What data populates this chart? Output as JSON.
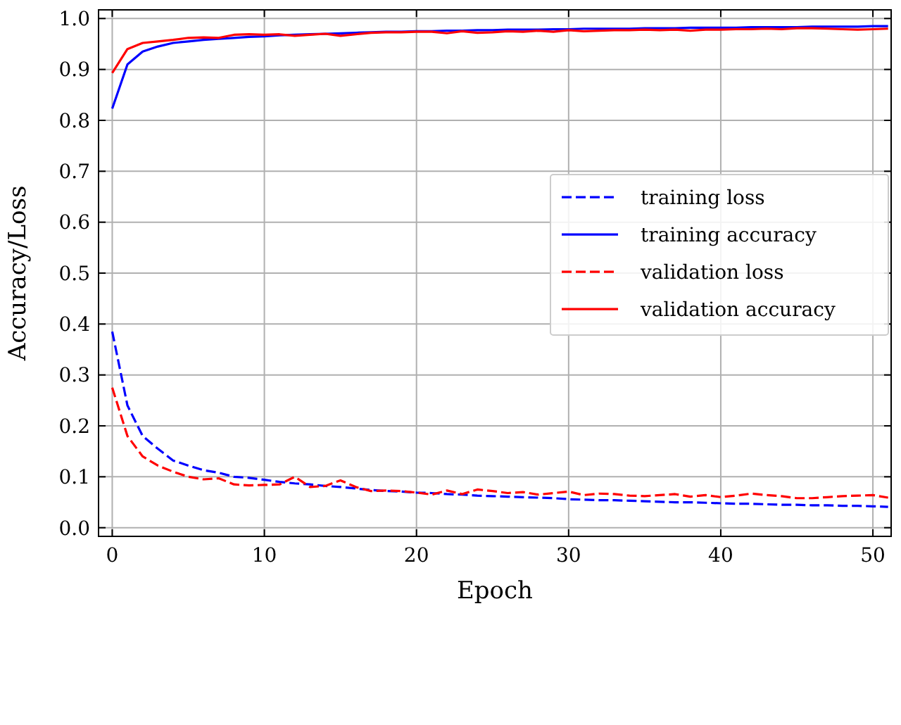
{
  "chart_data": {
    "type": "line",
    "xlabel": "Epoch",
    "ylabel": "Accuracy/Loss",
    "x": [
      0,
      1,
      2,
      3,
      4,
      5,
      6,
      7,
      8,
      9,
      10,
      11,
      12,
      13,
      14,
      15,
      16,
      17,
      18,
      19,
      20,
      21,
      22,
      23,
      24,
      25,
      26,
      27,
      28,
      29,
      30,
      31,
      32,
      33,
      34,
      35,
      36,
      37,
      38,
      39,
      40,
      41,
      42,
      43,
      44,
      45,
      46,
      47,
      48,
      49,
      50,
      51
    ],
    "series": [
      {
        "name": "training loss",
        "color": "#0000ff",
        "line_style": "dashed",
        "values": [
          0.385,
          0.24,
          0.18,
          0.155,
          0.132,
          0.122,
          0.113,
          0.108,
          0.1,
          0.098,
          0.094,
          0.09,
          0.087,
          0.085,
          0.082,
          0.08,
          0.077,
          0.074,
          0.072,
          0.071,
          0.069,
          0.068,
          0.066,
          0.065,
          0.063,
          0.062,
          0.061,
          0.06,
          0.059,
          0.058,
          0.056,
          0.055,
          0.054,
          0.054,
          0.053,
          0.052,
          0.051,
          0.05,
          0.05,
          0.049,
          0.048,
          0.047,
          0.047,
          0.046,
          0.045,
          0.045,
          0.044,
          0.044,
          0.043,
          0.043,
          0.042,
          0.041
        ]
      },
      {
        "name": "training accuracy",
        "color": "#0000ff",
        "line_style": "solid",
        "values": [
          0.823,
          0.91,
          0.935,
          0.945,
          0.952,
          0.955,
          0.958,
          0.96,
          0.962,
          0.964,
          0.965,
          0.967,
          0.968,
          0.969,
          0.97,
          0.971,
          0.972,
          0.973,
          0.974,
          0.974,
          0.975,
          0.975,
          0.976,
          0.976,
          0.977,
          0.977,
          0.978,
          0.978,
          0.978,
          0.979,
          0.979,
          0.98,
          0.98,
          0.98,
          0.98,
          0.981,
          0.981,
          0.981,
          0.982,
          0.982,
          0.982,
          0.982,
          0.983,
          0.983,
          0.983,
          0.983,
          0.984,
          0.984,
          0.984,
          0.984,
          0.985,
          0.985
        ]
      },
      {
        "name": "validation loss",
        "color": "#ff0000",
        "line_style": "dashed",
        "values": [
          0.275,
          0.18,
          0.14,
          0.122,
          0.11,
          0.1,
          0.095,
          0.097,
          0.085,
          0.083,
          0.084,
          0.085,
          0.1,
          0.08,
          0.082,
          0.093,
          0.08,
          0.072,
          0.073,
          0.072,
          0.069,
          0.065,
          0.073,
          0.066,
          0.075,
          0.072,
          0.068,
          0.07,
          0.065,
          0.068,
          0.071,
          0.064,
          0.067,
          0.066,
          0.063,
          0.062,
          0.064,
          0.066,
          0.061,
          0.064,
          0.06,
          0.063,
          0.067,
          0.064,
          0.062,
          0.058,
          0.058,
          0.06,
          0.062,
          0.063,
          0.064,
          0.059
        ]
      },
      {
        "name": "validation accuracy",
        "color": "#ff0000",
        "line_style": "solid",
        "values": [
          0.893,
          0.94,
          0.952,
          0.955,
          0.958,
          0.962,
          0.963,
          0.962,
          0.968,
          0.969,
          0.968,
          0.969,
          0.966,
          0.968,
          0.97,
          0.966,
          0.969,
          0.972,
          0.973,
          0.973,
          0.974,
          0.974,
          0.971,
          0.975,
          0.972,
          0.973,
          0.975,
          0.974,
          0.976,
          0.974,
          0.977,
          0.975,
          0.976,
          0.977,
          0.977,
          0.978,
          0.977,
          0.978,
          0.976,
          0.978,
          0.978,
          0.979,
          0.979,
          0.98,
          0.979,
          0.981,
          0.981,
          0.98,
          0.979,
          0.978,
          0.979,
          0.98
        ]
      }
    ],
    "xlim": [
      -0.9,
      51.2
    ],
    "ylim": [
      -0.017,
      1.017
    ],
    "xticks": [
      0,
      10,
      20,
      30,
      40,
      50
    ],
    "yticks": [
      {
        "value": 0,
        "label": "0.0"
      },
      {
        "value": 0.1,
        "label": "0.1"
      },
      {
        "value": 0.2,
        "label": "0.2"
      },
      {
        "value": 0.3,
        "label": "0.3"
      },
      {
        "value": 0.4,
        "label": "0.4"
      },
      {
        "value": 0.5,
        "label": "0.5"
      },
      {
        "value": 0.6,
        "label": "0.6"
      },
      {
        "value": 0.7,
        "label": "0.7"
      },
      {
        "value": 0.8,
        "label": "0.8"
      },
      {
        "value": 0.9,
        "label": "0.9"
      },
      {
        "value": 1,
        "label": "1.0"
      }
    ],
    "grid": true,
    "legend": "right"
  }
}
